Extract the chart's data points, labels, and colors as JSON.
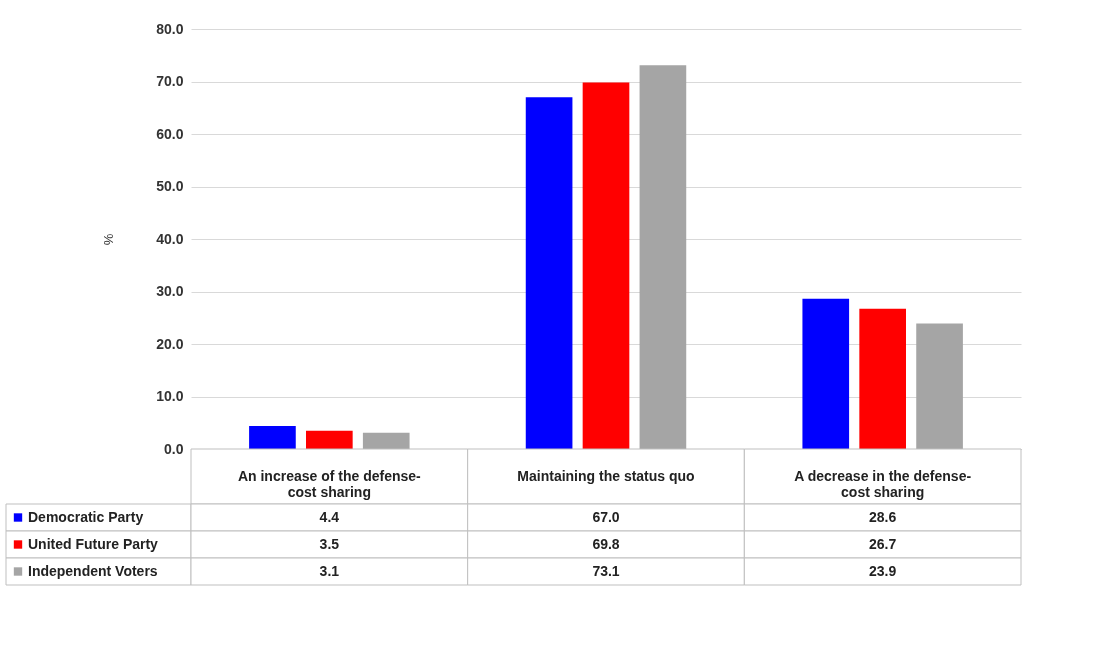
{
  "chart_data": {
    "type": "bar",
    "ylabel": "%",
    "categories": [
      "An increase of the defense-cost sharing",
      "Maintaining the status quo",
      "A decrease in the defense-cost sharing"
    ],
    "series": [
      {
        "name": "Democratic Party",
        "color": "#0000ff",
        "values": [
          4.4,
          67.0,
          28.6
        ],
        "value_labels": [
          "4.4",
          "67.0",
          "28.6"
        ]
      },
      {
        "name": "United Future Party",
        "color": "#ff0000",
        "values": [
          3.5,
          69.8,
          26.7
        ],
        "value_labels": [
          "3.5",
          "69.8",
          "26.7"
        ]
      },
      {
        "name": "Independent Voters",
        "color": "#a5a5a5",
        "values": [
          3.1,
          73.1,
          23.9
        ],
        "value_labels": [
          "3.1",
          "73.1",
          "23.9"
        ]
      }
    ],
    "ylim": [
      0,
      80
    ],
    "yticks": [
      {
        "value": 0,
        "label": "0.0"
      },
      {
        "value": 10,
        "label": "10.0"
      },
      {
        "value": 20,
        "label": "20.0"
      },
      {
        "value": 30,
        "label": "30.0"
      },
      {
        "value": 40,
        "label": "40.0"
      },
      {
        "value": 50,
        "label": "50.0"
      },
      {
        "value": 60,
        "label": "60.0"
      },
      {
        "value": 70,
        "label": "70.0"
      },
      {
        "value": 80,
        "label": "80.0"
      }
    ],
    "grid": "y",
    "legend": "bottom left"
  }
}
